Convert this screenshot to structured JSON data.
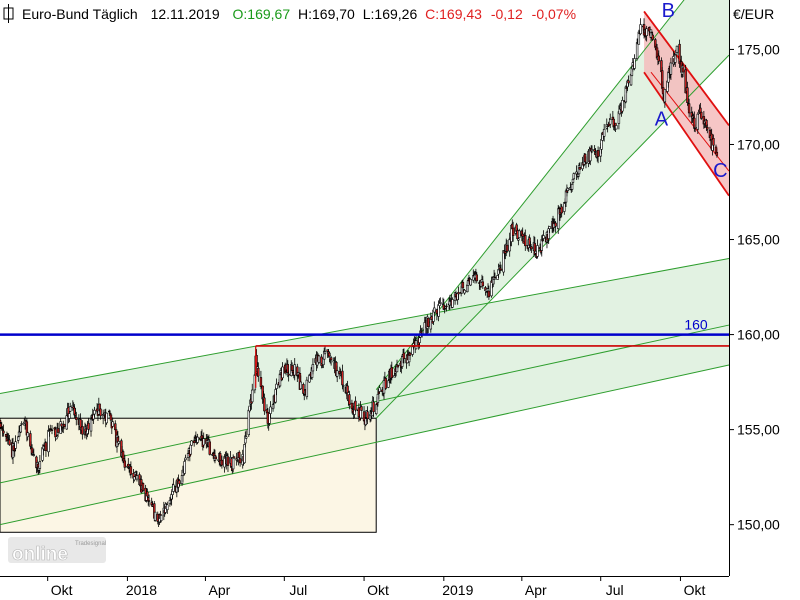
{
  "header": {
    "instrument": "Euro-Bund Täglich",
    "date": "12.11.2019",
    "open": "O:169,67",
    "high": "H:169,70",
    "low": "L:169,26",
    "close": "C:169,43",
    "change": "-0,12",
    "change_pct": "-0,07%",
    "colors": {
      "open": "#1a9a1a",
      "text": "#000000",
      "close": "#e02020"
    }
  },
  "watermark": {
    "brand": "Tradesignal",
    "text": "online"
  },
  "chart_data": {
    "type": "candlestick",
    "title": "",
    "ylabel": "€/EUR",
    "ylim": [
      147.3,
      177.6
    ],
    "y_ticks": [
      "150,00",
      "155,00",
      "160,00",
      "165,00",
      "170,00",
      "175,00"
    ],
    "y_tick_values": [
      150,
      155,
      160,
      165,
      170,
      175
    ],
    "x_ticks": [
      "Okt",
      "2018",
      "Apr",
      "Jul",
      "Okt",
      "2019",
      "Apr",
      "Jul",
      "Okt"
    ],
    "x_tick_dates": [
      "2017-10-01",
      "2018-01-01",
      "2018-04-01",
      "2018-07-01",
      "2018-10-01",
      "2019-01-01",
      "2019-04-01",
      "2019-07-01",
      "2019-10-01"
    ],
    "x_range": [
      "2017-08-07",
      "2019-11-26"
    ],
    "grid": false,
    "up_color": "#ffffff",
    "down_color": "#cc2222",
    "price_path": [
      [
        "2017-08-07",
        155.5
      ],
      [
        "2017-08-21",
        153.8
      ],
      [
        "2017-09-04",
        155.6
      ],
      [
        "2017-09-18",
        152.8
      ],
      [
        "2017-10-02",
        154.6
      ],
      [
        "2017-10-16",
        155.2
      ],
      [
        "2017-10-30",
        156.3
      ],
      [
        "2017-11-13",
        154.8
      ],
      [
        "2017-11-27",
        156.1
      ],
      [
        "2017-12-11",
        155.6
      ],
      [
        "2017-12-27",
        153.4
      ],
      [
        "2018-01-10",
        152.6
      ],
      [
        "2018-01-24",
        151.4
      ],
      [
        "2018-02-06",
        150.2
      ],
      [
        "2018-02-20",
        151.5
      ],
      [
        "2018-03-06",
        152.8
      ],
      [
        "2018-03-20",
        154.6
      ],
      [
        "2018-04-03",
        154.2
      ],
      [
        "2018-04-17",
        153.4
      ],
      [
        "2018-05-01",
        153.2
      ],
      [
        "2018-05-15",
        153.6
      ],
      [
        "2018-05-29",
        158.5
      ],
      [
        "2018-06-05",
        157.0
      ],
      [
        "2018-06-12",
        155.4
      ],
      [
        "2018-06-26",
        157.8
      ],
      [
        "2018-07-10",
        158.4
      ],
      [
        "2018-07-24",
        156.9
      ],
      [
        "2018-08-07",
        158.6
      ],
      [
        "2018-08-21",
        158.9
      ],
      [
        "2018-09-04",
        157.8
      ],
      [
        "2018-09-18",
        156.2
      ],
      [
        "2018-10-02",
        155.6
      ],
      [
        "2018-10-16",
        156.6
      ],
      [
        "2018-10-30",
        157.8
      ],
      [
        "2018-11-13",
        158.6
      ],
      [
        "2018-11-27",
        159.2
      ],
      [
        "2018-12-11",
        160.6
      ],
      [
        "2018-12-27",
        161.3
      ],
      [
        "2019-01-10",
        161.6
      ],
      [
        "2019-01-24",
        162.6
      ],
      [
        "2019-02-07",
        163.1
      ],
      [
        "2019-02-21",
        162.1
      ],
      [
        "2019-03-07",
        163.6
      ],
      [
        "2019-03-21",
        165.6
      ],
      [
        "2019-04-04",
        165.1
      ],
      [
        "2019-04-18",
        164.3
      ],
      [
        "2019-05-02",
        165.3
      ],
      [
        "2019-05-16",
        166.6
      ],
      [
        "2019-05-30",
        168.1
      ],
      [
        "2019-06-13",
        169.3
      ],
      [
        "2019-06-27",
        169.6
      ],
      [
        "2019-07-08",
        170.8
      ],
      [
        "2019-07-22",
        171.4
      ],
      [
        "2019-08-05",
        173.6
      ],
      [
        "2019-08-16",
        176.3
      ],
      [
        "2019-08-30",
        175.6
      ],
      [
        "2019-09-06",
        174.6
      ],
      [
        "2019-09-12",
        172.6
      ],
      [
        "2019-09-20",
        174.3
      ],
      [
        "2019-09-27",
        174.8
      ],
      [
        "2019-10-04",
        173.8
      ],
      [
        "2019-10-11",
        171.9
      ],
      [
        "2019-10-18",
        171.1
      ],
      [
        "2019-10-25",
        171.6
      ],
      [
        "2019-11-04",
        170.3
      ],
      [
        "2019-11-12",
        169.43
      ]
    ],
    "horizontal_lines": [
      {
        "name": "level-160",
        "y": 160.0,
        "label": "160",
        "color": "#0000cc",
        "from": "2017-08-07",
        "to": "2019-11-26"
      },
      {
        "name": "resistance-159",
        "y": 159.4,
        "label": "",
        "color": "#cc0000",
        "from": "2018-05-29",
        "to": "2019-11-26"
      }
    ],
    "rectangles": [
      {
        "name": "range-box",
        "x0": "2017-08-07",
        "x1": "2018-10-15",
        "y0": 149.6,
        "y1": 155.6,
        "fill": "#fbf3dc",
        "stroke": "#000000"
      }
    ],
    "channels": [
      {
        "name": "lower-channel",
        "upper": [
          [
            "2017-08-07",
            156.9
          ],
          [
            "2019-11-26",
            164.0
          ]
        ],
        "middle": [
          [
            "2017-08-07",
            152.2
          ],
          [
            "2019-11-26",
            160.5
          ]
        ],
        "lower": [
          [
            "2017-08-07",
            150.0
          ],
          [
            "2019-11-26",
            158.4
          ]
        ],
        "fill": "#d8eed8",
        "stroke": "#2e9e2e"
      },
      {
        "name": "uptrend-channel",
        "upper": [
          [
            "2018-10-15",
            157.1
          ],
          [
            "2019-11-26",
            180.6
          ]
        ],
        "lower": [
          [
            "2018-10-15",
            155.6
          ],
          [
            "2019-11-26",
            174.7
          ]
        ],
        "fill": "#d8eed8",
        "stroke": "#2e9e2e"
      },
      {
        "name": "downtrend-channel",
        "upper": [
          [
            "2019-08-20",
            177.0
          ],
          [
            "2019-11-26",
            171.0
          ]
        ],
        "lower": [
          [
            "2019-08-20",
            173.8
          ],
          [
            "2019-11-26",
            167.3
          ]
        ],
        "middle": [
          [
            "2019-08-28",
            173.8
          ],
          [
            "2019-11-26",
            168.6
          ]
        ],
        "fill": "#f5bcbc",
        "stroke": "#e01010"
      }
    ],
    "annotations": [
      {
        "name": "wave-A",
        "text": "A",
        "x": "2019-09-09",
        "y": 171.0
      },
      {
        "name": "wave-B",
        "text": "B",
        "x": "2019-09-17",
        "y": 176.7
      },
      {
        "name": "wave-C",
        "text": "C",
        "x": "2019-11-16",
        "y": 168.3
      }
    ]
  }
}
